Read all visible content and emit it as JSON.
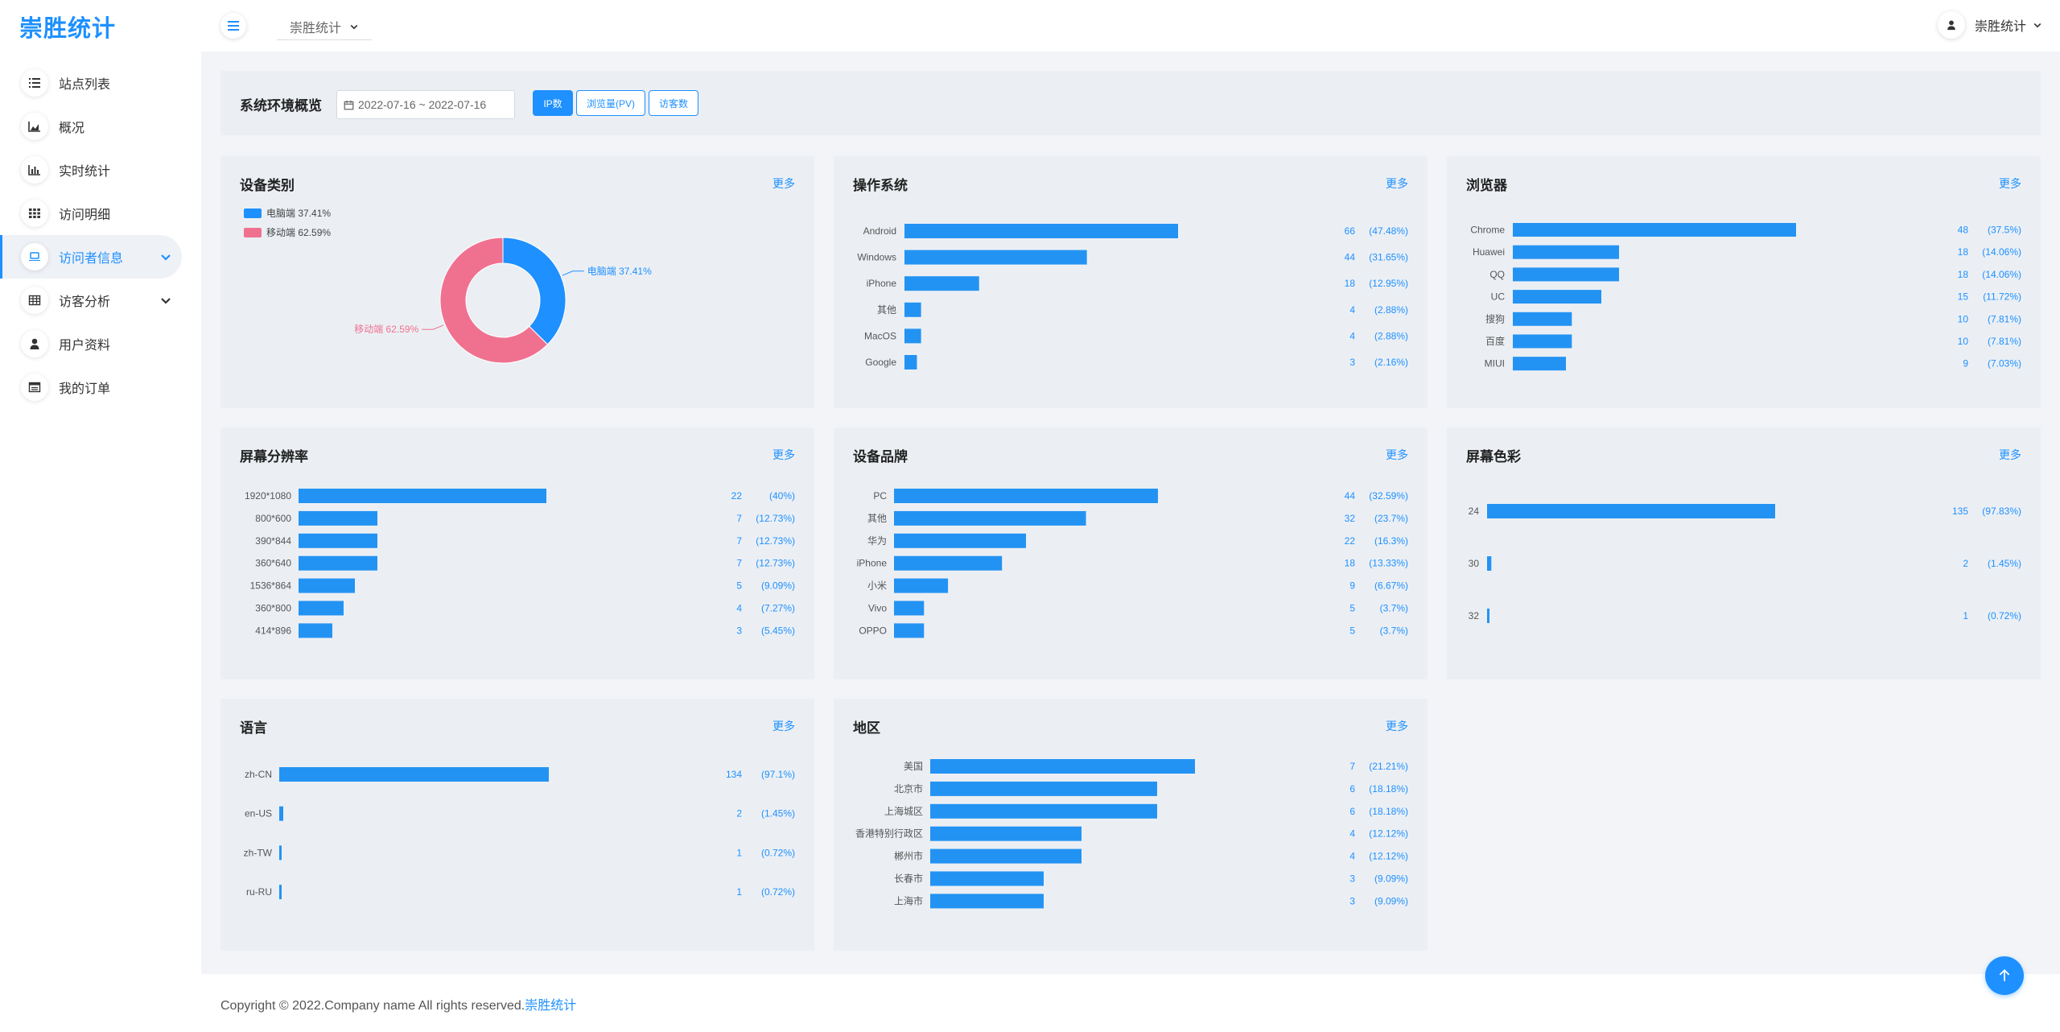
{
  "app": {
    "logo": "崇胜统计"
  },
  "sidebar": {
    "items": [
      {
        "label": "站点列表",
        "icon": "list-icon"
      },
      {
        "label": "概况",
        "icon": "area-chart-icon"
      },
      {
        "label": "实时统计",
        "icon": "bar-chart-icon"
      },
      {
        "label": "访问明细",
        "icon": "grid-icon"
      },
      {
        "label": "访问者信息",
        "icon": "laptop-icon",
        "active": true,
        "expandable": true
      },
      {
        "label": "访客分析",
        "icon": "table-icon",
        "expandable": true
      },
      {
        "label": "用户资料",
        "icon": "user-icon"
      },
      {
        "label": "我的订单",
        "icon": "order-icon"
      }
    ]
  },
  "topbar": {
    "site_select": "崇胜统计",
    "user_name": "崇胜统计"
  },
  "filter": {
    "title": "系统环境概览",
    "date_range": "2022-07-16 ~ 2022-07-16",
    "buttons": [
      "IP数",
      "浏览量(PV)",
      "访客数"
    ],
    "active_button": "IP数"
  },
  "colors": {
    "accent": "#1e90ff",
    "bar": "#2393f3",
    "mobile": "#f0718f",
    "card_bg": "#ebeff4"
  },
  "more_label": "更多",
  "chart_data": [
    {
      "id": "device",
      "type": "pie",
      "title": "设备类别",
      "categories": [
        "电脑端",
        "移动端"
      ],
      "values": [
        37.41,
        62.59
      ],
      "labels": [
        "电脑端 37.41%",
        "移动端 62.59%"
      ],
      "legend": "top-left"
    },
    {
      "id": "os",
      "type": "bar",
      "title": "操作系统",
      "categories": [
        "Android",
        "Windows",
        "iPhone",
        "其他",
        "MacOS",
        "Google"
      ],
      "values": [
        66,
        44,
        18,
        4,
        4,
        3
      ],
      "percents": [
        "(47.48%)",
        "(31.65%)",
        "(12.95%)",
        "(2.88%)",
        "(2.88%)",
        "(2.16%)"
      ]
    },
    {
      "id": "browser",
      "type": "bar",
      "title": "浏览器",
      "categories": [
        "Chrome",
        "Huawei",
        "QQ",
        "UC",
        "搜狗",
        "百度",
        "MIUI"
      ],
      "values": [
        48,
        18,
        18,
        15,
        10,
        10,
        9
      ],
      "percents": [
        "(37.5%)",
        "(14.06%)",
        "(14.06%)",
        "(11.72%)",
        "(7.81%)",
        "(7.81%)",
        "(7.03%)"
      ]
    },
    {
      "id": "resolution",
      "type": "bar",
      "title": "屏幕分辨率",
      "categories": [
        "1920*1080",
        "800*600",
        "390*844",
        "360*640",
        "1536*864",
        "360*800",
        "414*896"
      ],
      "values": [
        22,
        7,
        7,
        7,
        5,
        4,
        3
      ],
      "percents": [
        "(40%)",
        "(12.73%)",
        "(12.73%)",
        "(12.73%)",
        "(9.09%)",
        "(7.27%)",
        "(5.45%)"
      ]
    },
    {
      "id": "brand",
      "type": "bar",
      "title": "设备品牌",
      "categories": [
        "PC",
        "其他",
        "华为",
        "iPhone",
        "小米",
        "Vivo",
        "OPPO"
      ],
      "values": [
        44,
        32,
        22,
        18,
        9,
        5,
        5
      ],
      "percents": [
        "(32.59%)",
        "(23.7%)",
        "(16.3%)",
        "(13.33%)",
        "(6.67%)",
        "(3.7%)",
        "(3.7%)"
      ]
    },
    {
      "id": "color",
      "type": "bar",
      "title": "屏幕色彩",
      "categories": [
        "24",
        "30",
        "32"
      ],
      "values": [
        135,
        2,
        1
      ],
      "percents": [
        "(97.83%)",
        "(1.45%)",
        "(0.72%)"
      ]
    },
    {
      "id": "language",
      "type": "bar",
      "title": "语言",
      "categories": [
        "zh-CN",
        "en-US",
        "zh-TW",
        "ru-RU"
      ],
      "values": [
        134,
        2,
        1,
        1
      ],
      "percents": [
        "(97.1%)",
        "(1.45%)",
        "(0.72%)",
        "(0.72%)"
      ]
    },
    {
      "id": "region",
      "type": "bar",
      "title": "地区",
      "categories": [
        "美国",
        "北京市",
        "上海城区",
        "香港特别行政区",
        "郴州市",
        "长春市",
        "上海市"
      ],
      "values": [
        7,
        6,
        6,
        4,
        4,
        3,
        3
      ],
      "percents": [
        "(21.21%)",
        "(18.18%)",
        "(18.18%)",
        "(12.12%)",
        "(12.12%)",
        "(9.09%)",
        "(9.09%)"
      ]
    }
  ],
  "footer": {
    "text": "Copyright © 2022.Company name All rights reserved.",
    "brand": "崇胜统计"
  }
}
